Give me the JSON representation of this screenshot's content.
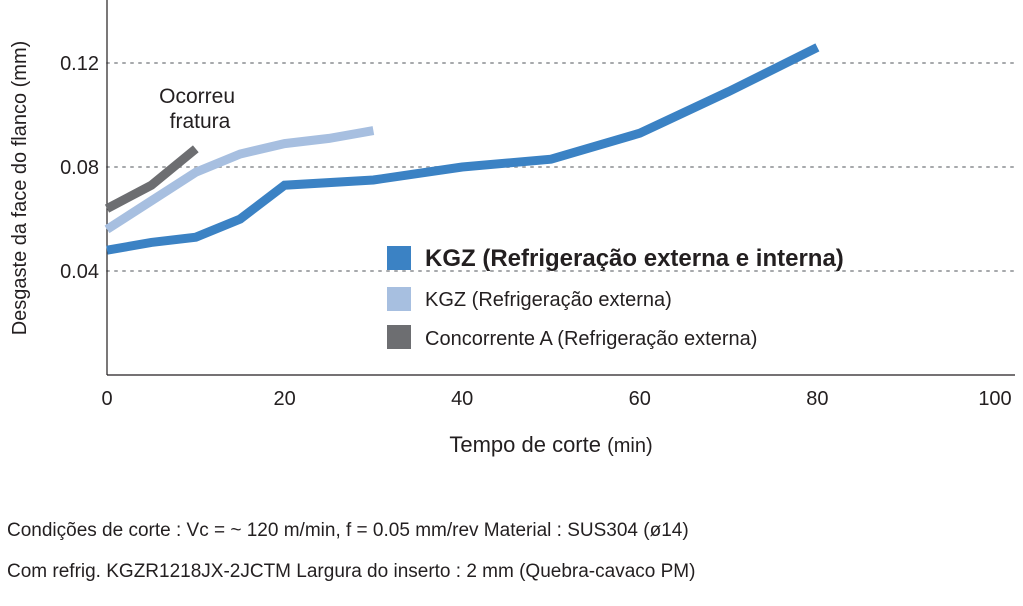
{
  "chart_data": {
    "type": "line",
    "ylabel": "Desgaste da face do flanco (mm)",
    "xlabel_main": "Tempo de corte",
    "xlabel_unit": "(min)",
    "xlim": [
      0,
      100
    ],
    "ylim": [
      0,
      0.14
    ],
    "x_ticks": [
      "0",
      "20",
      "40",
      "60",
      "80",
      "100"
    ],
    "y_ticks": [
      "0.04",
      "0.08",
      "0.12"
    ],
    "grid": "horizontal dotted",
    "legend_position": "center-right",
    "annotation": [
      "Ocorreu",
      "fratura"
    ],
    "series": [
      {
        "name": "KGZ (Refrigeração externa e interna)",
        "color": "#3b82c4",
        "x": [
          0,
          5,
          10,
          15,
          20,
          30,
          40,
          50,
          60,
          70,
          80
        ],
        "y": [
          0.048,
          0.051,
          0.053,
          0.06,
          0.073,
          0.075,
          0.08,
          0.083,
          0.093,
          0.109,
          0.126
        ]
      },
      {
        "name": "KGZ (Refrigeração externa)",
        "color": "#a7bfe0",
        "x": [
          0,
          5,
          10,
          15,
          20,
          25,
          30
        ],
        "y": [
          0.056,
          0.067,
          0.078,
          0.085,
          0.089,
          0.091,
          0.094
        ]
      },
      {
        "name": "Concorrente A (Refrigeração externa)",
        "color": "#6d6e71",
        "x": [
          0,
          5,
          10
        ],
        "y": [
          0.064,
          0.073,
          0.087
        ]
      }
    ]
  },
  "conditions": {
    "line1": "Condições de corte : Vc = ~ 120 m/min, f = 0.05 mm/rev  Material : SUS304 (ø14)",
    "line2": "Com refrig.  KGZR1218JX-2JCTM  Largura do inserto : 2 mm (Quebra-cavaco PM)"
  }
}
